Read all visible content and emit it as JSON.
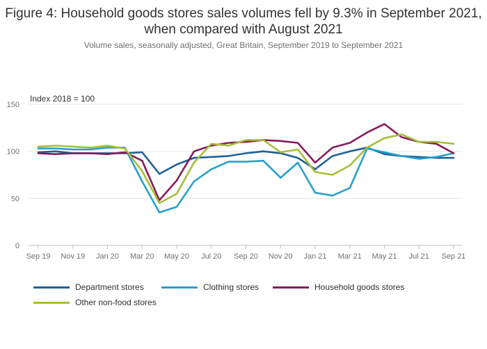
{
  "chart_data": {
    "type": "line",
    "title": "Figure 4: Household goods stores sales volumes fell by 9.3% in September 2021, when compared with August 2021",
    "subtitle": "Volume sales, seasonally adjusted, Great Britain, September 2019 to September 2021",
    "ylabel": "Index 2018 = 100",
    "ylim": [
      0,
      150
    ],
    "yticks": [
      0,
      50,
      100,
      150
    ],
    "x": [
      "Sep 19",
      "Oct 19",
      "Nov 19",
      "Dec 19",
      "Jan 20",
      "Feb 20",
      "Mar 20",
      "Apr 20",
      "May 20",
      "Jun 20",
      "Jul 20",
      "Aug 20",
      "Sep 20",
      "Oct 20",
      "Nov 20",
      "Dec 20",
      "Jan 21",
      "Feb 21",
      "Mar 21",
      "Apr 21",
      "May 21",
      "Jun 21",
      "Jul 21",
      "Aug 21",
      "Sep 21"
    ],
    "xtick_labels": [
      "Sep 19",
      "Nov 19",
      "Jan 20",
      "Mar 20",
      "May 20",
      "Jul 20",
      "Sep 20",
      "Nov 20",
      "Jan 21",
      "Mar 21",
      "May 21",
      "Jul 21",
      "Sep 21"
    ],
    "series": [
      {
        "name": "Department stores",
        "color": "#206095",
        "values": [
          99,
          100,
          98,
          98,
          98,
          98,
          99,
          76,
          86,
          93,
          94,
          95,
          98,
          100,
          98,
          93,
          81,
          95,
          100,
          104,
          97,
          95,
          94,
          93,
          93
        ]
      },
      {
        "name": "Clothing stores",
        "color": "#27a0cc",
        "values": [
          103,
          103,
          102,
          102,
          104,
          104,
          68,
          35,
          41,
          68,
          81,
          89,
          89,
          90,
          72,
          88,
          56,
          53,
          61,
          103,
          99,
          95,
          92,
          94,
          98
        ]
      },
      {
        "name": "Household goods stores",
        "color": "#871a5b",
        "values": [
          98,
          97,
          98,
          98,
          97,
          99,
          90,
          48,
          69,
          100,
          106,
          109,
          110,
          112,
          111,
          109,
          88,
          104,
          109,
          120,
          129,
          115,
          110,
          108,
          98
        ]
      },
      {
        "name": "Other non-food stores",
        "color": "#a8bd3a",
        "values": [
          105,
          106,
          105,
          104,
          106,
          103,
          79,
          45,
          55,
          88,
          108,
          106,
          112,
          112,
          99,
          102,
          78,
          75,
          85,
          104,
          114,
          118,
          110,
          110,
          108
        ]
      }
    ],
    "legend_position": "bottom"
  }
}
